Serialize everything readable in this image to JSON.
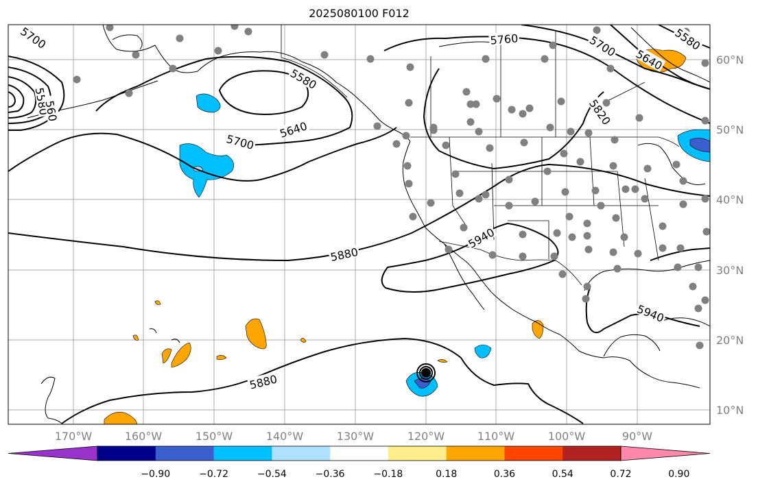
{
  "title": "2025080100 F012",
  "lon_labels": [
    "170°W",
    "160°W",
    "150°W",
    "140°W",
    "130°W",
    "120°W",
    "110°W",
    "100°W",
    "90°W"
  ],
  "lat_labels": [
    "10°N",
    "20°N",
    "30°N",
    "40°N",
    "50°N",
    "60°N"
  ],
  "contour_labels": [
    {
      "text": "5700",
      "id": "c5700-nw"
    },
    {
      "text": "5580",
      "id": "c5580-w"
    },
    {
      "text": "560",
      "id": "c560-w"
    },
    {
      "text": "5580",
      "id": "c5580-gulf"
    },
    {
      "text": "5640",
      "id": "c5640-gulf"
    },
    {
      "text": "5700",
      "id": "c5700-gulf"
    },
    {
      "text": "5760",
      "id": "c5760-canada"
    },
    {
      "text": "5700",
      "id": "c5700-canada"
    },
    {
      "text": "5640",
      "id": "c5640-hudson"
    },
    {
      "text": "5580",
      "id": "c5580-ne"
    },
    {
      "text": "5820",
      "id": "c5820-plains"
    },
    {
      "text": "5940",
      "id": "c5940-sw"
    },
    {
      "text": "5880",
      "id": "c5880-pacific"
    },
    {
      "text": "5940",
      "id": "c5940-gulf"
    },
    {
      "text": "5880",
      "id": "c5880-south"
    }
  ],
  "colorbar": {
    "ticks": [
      "−0.90",
      "−0.72",
      "−0.54",
      "−0.36",
      "−0.18",
      "0.18",
      "0.36",
      "0.54",
      "0.72",
      "0.90"
    ],
    "colors": [
      "#9932cc",
      "#00008b",
      "#3a5fcd",
      "#00bfff",
      "#b0e0ff",
      "#ffffff",
      "#ffec8b",
      "#ffa500",
      "#ff4500",
      "#b22222",
      "#ff89aa"
    ]
  },
  "station_marker_color": "#808080"
}
